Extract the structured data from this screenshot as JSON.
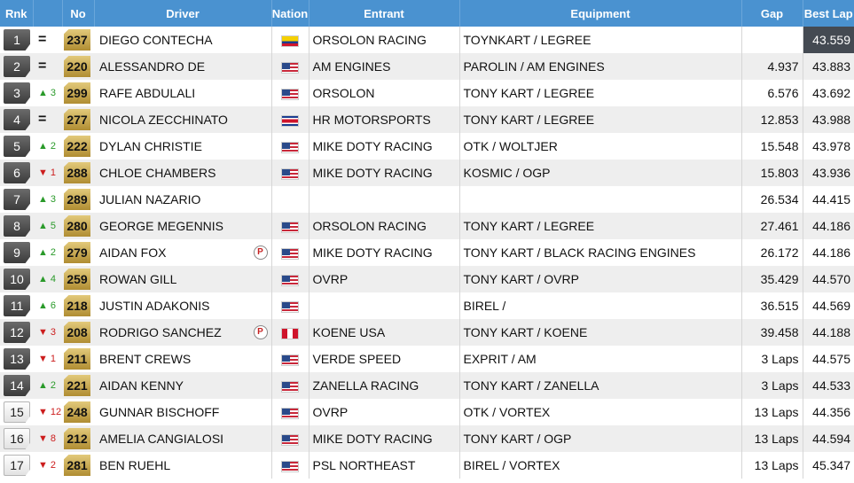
{
  "headers": {
    "rnk": "Rnk",
    "no": "No",
    "driver": "Driver",
    "nation": "Nation",
    "entrant": "Entrant",
    "equipment": "Equipment",
    "gap": "Gap",
    "best_lap": "Best Lap"
  },
  "rows": [
    {
      "rank": "1",
      "change_dir": "same",
      "change_val": "",
      "number": "237",
      "driver": "DIEGO CONTECHA",
      "penalty": false,
      "flag": "col",
      "entrant": "ORSOLON RACING",
      "equipment": "TOYNKART / LEGREE",
      "gap": "",
      "best_lap": "43.559",
      "fastest": true
    },
    {
      "rank": "2",
      "change_dir": "same",
      "change_val": "",
      "number": "220",
      "driver": "ALESSANDRO DE",
      "penalty": false,
      "flag": "usa",
      "entrant": "AM ENGINES",
      "equipment": "PAROLIN / AM ENGINES",
      "gap": "4.937",
      "best_lap": "43.883",
      "fastest": false
    },
    {
      "rank": "3",
      "change_dir": "up",
      "change_val": "3",
      "number": "299",
      "driver": "RAFE ABDULALI",
      "penalty": false,
      "flag": "usa",
      "entrant": "ORSOLON",
      "equipment": "TONY KART / LEGREE",
      "gap": "6.576",
      "best_lap": "43.692",
      "fastest": false
    },
    {
      "rank": "4",
      "change_dir": "same",
      "change_val": "",
      "number": "277",
      "driver": "NICOLA ZECCHINATO",
      "penalty": false,
      "flag": "cri",
      "entrant": "HR MOTORSPORTS",
      "equipment": "TONY KART / LEGREE",
      "gap": "12.853",
      "best_lap": "43.988",
      "fastest": false
    },
    {
      "rank": "5",
      "change_dir": "up",
      "change_val": "2",
      "number": "222",
      "driver": "DYLAN CHRISTIE",
      "penalty": false,
      "flag": "usa",
      "entrant": "MIKE DOTY RACING",
      "equipment": "OTK / WOLTJER",
      "gap": "15.548",
      "best_lap": "43.978",
      "fastest": false
    },
    {
      "rank": "6",
      "change_dir": "down",
      "change_val": "1",
      "number": "288",
      "driver": "CHLOE CHAMBERS",
      "penalty": false,
      "flag": "usa",
      "entrant": "MIKE DOTY RACING",
      "equipment": "KOSMIC / OGP",
      "gap": "15.803",
      "best_lap": "43.936",
      "fastest": false
    },
    {
      "rank": "7",
      "change_dir": "up",
      "change_val": "3",
      "number": "289",
      "driver": "JULIAN NAZARIO",
      "penalty": false,
      "flag": "",
      "entrant": "",
      "equipment": "",
      "gap": "26.534",
      "best_lap": "44.415",
      "fastest": false
    },
    {
      "rank": "8",
      "change_dir": "up",
      "change_val": "5",
      "number": "280",
      "driver": "GEORGE MEGENNIS",
      "penalty": false,
      "flag": "usa",
      "entrant": "ORSOLON RACING",
      "equipment": "TONY KART / LEGREE",
      "gap": "27.461",
      "best_lap": "44.186",
      "fastest": false
    },
    {
      "rank": "9",
      "change_dir": "up",
      "change_val": "2",
      "number": "279",
      "driver": "AIDAN FOX",
      "penalty": true,
      "flag": "usa",
      "entrant": "MIKE DOTY RACING",
      "equipment": "TONY KART / BLACK RACING ENGINES",
      "gap": "26.172",
      "best_lap": "44.186",
      "fastest": false
    },
    {
      "rank": "10",
      "change_dir": "up",
      "change_val": "4",
      "number": "259",
      "driver": "ROWAN GILL",
      "penalty": false,
      "flag": "usa",
      "entrant": "OVRP",
      "equipment": "TONY KART / OVRP",
      "gap": "35.429",
      "best_lap": "44.570",
      "fastest": false
    },
    {
      "rank": "11",
      "change_dir": "up",
      "change_val": "6",
      "number": "218",
      "driver": "JUSTIN ADAKONIS",
      "penalty": false,
      "flag": "usa",
      "entrant": "",
      "equipment": "BIREL /",
      "gap": "36.515",
      "best_lap": "44.569",
      "fastest": false
    },
    {
      "rank": "12",
      "change_dir": "down",
      "change_val": "3",
      "number": "208",
      "driver": "RODRIGO SANCHEZ",
      "penalty": true,
      "flag": "per",
      "entrant": "KOENE USA",
      "equipment": "TONY KART / KOENE",
      "gap": "39.458",
      "best_lap": "44.188",
      "fastest": false
    },
    {
      "rank": "13",
      "change_dir": "down",
      "change_val": "1",
      "number": "211",
      "driver": "BRENT CREWS",
      "penalty": false,
      "flag": "usa",
      "entrant": "VERDE SPEED",
      "equipment": "EXPRIT / AM",
      "gap": "3 Laps",
      "best_lap": "44.575",
      "fastest": false
    },
    {
      "rank": "14",
      "change_dir": "up",
      "change_val": "2",
      "number": "221",
      "driver": "AIDAN KENNY",
      "penalty": false,
      "flag": "usa",
      "entrant": "ZANELLA RACING",
      "equipment": "TONY KART / ZANELLA",
      "gap": "3 Laps",
      "best_lap": "44.533",
      "fastest": false
    },
    {
      "rank": "15",
      "change_dir": "down",
      "change_val": "12",
      "number": "248",
      "driver": "GUNNAR BISCHOFF",
      "penalty": false,
      "flag": "usa",
      "entrant": "OVRP",
      "equipment": "OTK / VORTEX",
      "gap": "13 Laps",
      "best_lap": "44.356",
      "fastest": false
    },
    {
      "rank": "16",
      "change_dir": "down",
      "change_val": "8",
      "number": "212",
      "driver": "AMELIA CANGIALOSI",
      "penalty": false,
      "flag": "usa",
      "entrant": "MIKE DOTY RACING",
      "equipment": "TONY KART / OGP",
      "gap": "13 Laps",
      "best_lap": "44.594",
      "fastest": false
    },
    {
      "rank": "17",
      "change_dir": "down",
      "change_val": "2",
      "number": "281",
      "driver": "BEN RUEHL",
      "penalty": false,
      "flag": "usa",
      "entrant": "PSL NORTHEAST",
      "equipment": "BIREL / VORTEX",
      "gap": "13 Laps",
      "best_lap": "45.347",
      "fastest": false
    }
  ],
  "icons": {
    "same": "=",
    "up": "▲",
    "down": "▼",
    "penalty": "P"
  }
}
